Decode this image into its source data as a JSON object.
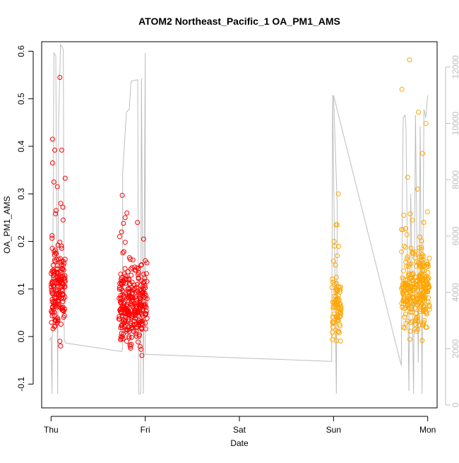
{
  "chart_data": {
    "type": "scatter",
    "title": "ATOM2 Northeast_Pacific_1 OA_PM1_AMS",
    "xlabel": "Date",
    "ylabel": "OA_PM1_AMS",
    "x_ticks": [
      "Thu",
      "Fri",
      "Sat",
      "Sun",
      "Mon"
    ],
    "ylim": [
      -0.15,
      0.62
    ],
    "y_ticks": [
      -0.1,
      0.0,
      0.1,
      0.2,
      0.3,
      0.4,
      0.5,
      0.6
    ],
    "y2lim": [
      -100,
      12900
    ],
    "y2_ticks": [
      0,
      2000,
      4000,
      6000,
      8000,
      10000,
      12000
    ],
    "xlim_days": [
      -0.1,
      4.1
    ],
    "grid": false,
    "colors": {
      "red_points": "#ff0000",
      "orange_points": "#ffa500",
      "altitude_line": "#bebebe"
    },
    "clusters": [
      {
        "color": "red",
        "day_start": 0.0,
        "day_end": 0.15,
        "y_center": 0.1,
        "y_spread": 0.08,
        "count": 160,
        "min": -0.02,
        "max": 0.55,
        "highlights": [
          0.545,
          0.415,
          0.392,
          0.392,
          0.365,
          0.333,
          0.325,
          0.315,
          0.28,
          0.272,
          0.265,
          0.258,
          0.245
        ]
      },
      {
        "color": "red",
        "day_start": 0.72,
        "day_end": 1.02,
        "y_center": 0.07,
        "y_spread": 0.07,
        "count": 300,
        "min": -0.04,
        "max": 0.3,
        "highlights": [
          0.297,
          0.26,
          0.25,
          0.24,
          0.238,
          0.22,
          0.21,
          0.205
        ]
      },
      {
        "color": "orange",
        "day_start": 2.98,
        "day_end": 3.08,
        "y_center": 0.06,
        "y_spread": 0.06,
        "count": 80,
        "min": -0.04,
        "max": 0.3,
        "highlights": [
          0.3,
          0.235,
          0.235,
          0.2,
          0.19,
          0.17
        ]
      },
      {
        "color": "orange",
        "day_start": 3.72,
        "day_end": 4.02,
        "y_center": 0.1,
        "y_spread": 0.07,
        "count": 280,
        "min": -0.04,
        "max": 0.585,
        "highlights": [
          0.582,
          0.52,
          0.472,
          0.448,
          0.385,
          0.335,
          0.31,
          0.262,
          0.258,
          0.255,
          0.245,
          0.24,
          0.225
        ]
      }
    ],
    "altitude_series": [
      [
        -0.02,
        2300
      ],
      [
        0.0,
        2400
      ],
      [
        0.01,
        400
      ],
      [
        0.02,
        6000
      ],
      [
        0.03,
        12500
      ],
      [
        0.05,
        12400
      ],
      [
        0.07,
        400
      ],
      [
        0.08,
        10000
      ],
      [
        0.1,
        12800
      ],
      [
        0.12,
        12700
      ],
      [
        0.13,
        12600
      ],
      [
        0.14,
        2300
      ],
      [
        0.16,
        2200
      ],
      [
        0.75,
        1900
      ],
      [
        0.76,
        2000
      ],
      [
        0.76,
        8200
      ],
      [
        0.78,
        9300
      ],
      [
        0.8,
        10400
      ],
      [
        0.83,
        10500
      ],
      [
        0.85,
        11500
      ],
      [
        0.92,
        11550
      ],
      [
        0.93,
        400
      ],
      [
        0.95,
        400
      ],
      [
        0.96,
        11600
      ],
      [
        0.98,
        400
      ],
      [
        1.0,
        12500
      ],
      [
        1.0,
        1800
      ],
      [
        2.98,
        1550
      ],
      [
        2.99,
        11000
      ],
      [
        3.03,
        400
      ],
      [
        3.04,
        7000
      ],
      [
        3.0,
        11000
      ],
      [
        3.72,
        1400
      ],
      [
        3.73,
        7000
      ],
      [
        3.74,
        10200
      ],
      [
        3.76,
        10300
      ],
      [
        3.77,
        9800
      ],
      [
        3.8,
        500
      ],
      [
        3.82,
        7500
      ],
      [
        3.85,
        400
      ],
      [
        3.87,
        10300
      ],
      [
        3.9,
        1500
      ],
      [
        3.92,
        9900
      ],
      [
        3.94,
        400
      ],
      [
        3.96,
        10500
      ],
      [
        3.98,
        10200
      ],
      [
        4.0,
        11000
      ]
    ]
  }
}
